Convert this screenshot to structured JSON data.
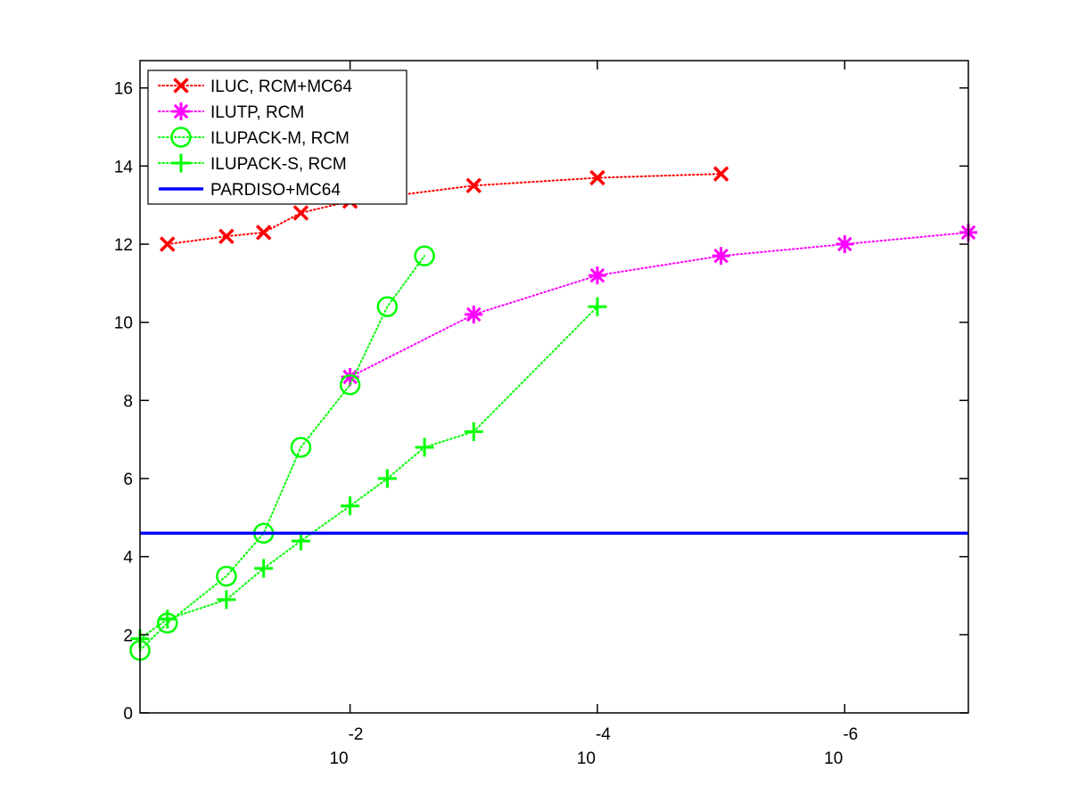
{
  "chart_data": {
    "type": "line",
    "title": "",
    "xlabel": "",
    "ylabel": "",
    "x_scale": "log",
    "x_reversed": true,
    "xlim": [
      0.5,
      1e-07
    ],
    "ylim": [
      0,
      16.7
    ],
    "y_ticks": [
      {
        "value": 0,
        "label": "0"
      },
      {
        "value": 2,
        "label": "2"
      },
      {
        "value": 4,
        "label": "4"
      },
      {
        "value": 6,
        "label": "6"
      },
      {
        "value": 8,
        "label": "8"
      },
      {
        "value": 10,
        "label": "10"
      },
      {
        "value": 12,
        "label": "12"
      },
      {
        "value": 14,
        "label": "14"
      },
      {
        "value": 16,
        "label": "16"
      }
    ],
    "x_ticks": [
      {
        "value": 0.01,
        "base": "10",
        "exponent": "-2"
      },
      {
        "value": 0.0001,
        "base": "10",
        "exponent": "-4"
      },
      {
        "value": 1e-06,
        "base": "10",
        "exponent": "-6"
      }
    ],
    "legend_position": "top-left",
    "grid": false,
    "series": [
      {
        "name": "ILUC, RCM+MC64",
        "color": "#ff0000",
        "marker": "x",
        "line_style": "dotted",
        "x": [
          0.3,
          0.1,
          0.05,
          0.025,
          0.01,
          0.001,
          0.0001,
          1e-05
        ],
        "y": [
          12.0,
          12.2,
          12.3,
          12.8,
          13.1,
          13.5,
          13.7,
          13.8
        ]
      },
      {
        "name": "ILUTP, RCM",
        "color": "#ff00ff",
        "marker": "asterisk",
        "line_style": "dotted",
        "x": [
          0.01,
          0.001,
          0.0001,
          1e-05,
          1e-06,
          1e-07
        ],
        "y": [
          8.6,
          10.2,
          11.2,
          11.7,
          12.0,
          12.3
        ]
      },
      {
        "name": "ILUPACK-M, RCM",
        "color": "#00ff00",
        "marker": "circle",
        "line_style": "dotted",
        "x": [
          0.5,
          0.3,
          0.1,
          0.05,
          0.025,
          0.01,
          0.005,
          0.0025
        ],
        "y": [
          1.6,
          2.3,
          3.5,
          4.6,
          6.8,
          8.4,
          10.4,
          11.7
        ]
      },
      {
        "name": "ILUPACK-S, RCM",
        "color": "#00ff00",
        "marker": "plus",
        "line_style": "dotted",
        "x": [
          0.5,
          0.3,
          0.1,
          0.05,
          0.025,
          0.01,
          0.005,
          0.0025,
          0.001,
          0.0001
        ],
        "y": [
          1.9,
          2.4,
          2.9,
          3.7,
          4.4,
          5.3,
          6.0,
          6.8,
          7.2,
          10.4
        ]
      },
      {
        "name": "PARDISO+MC64",
        "color": "#0000ff",
        "marker": "none",
        "line_style": "solid",
        "x": [
          0.5,
          1e-07
        ],
        "y": [
          4.6,
          4.6
        ]
      }
    ]
  }
}
